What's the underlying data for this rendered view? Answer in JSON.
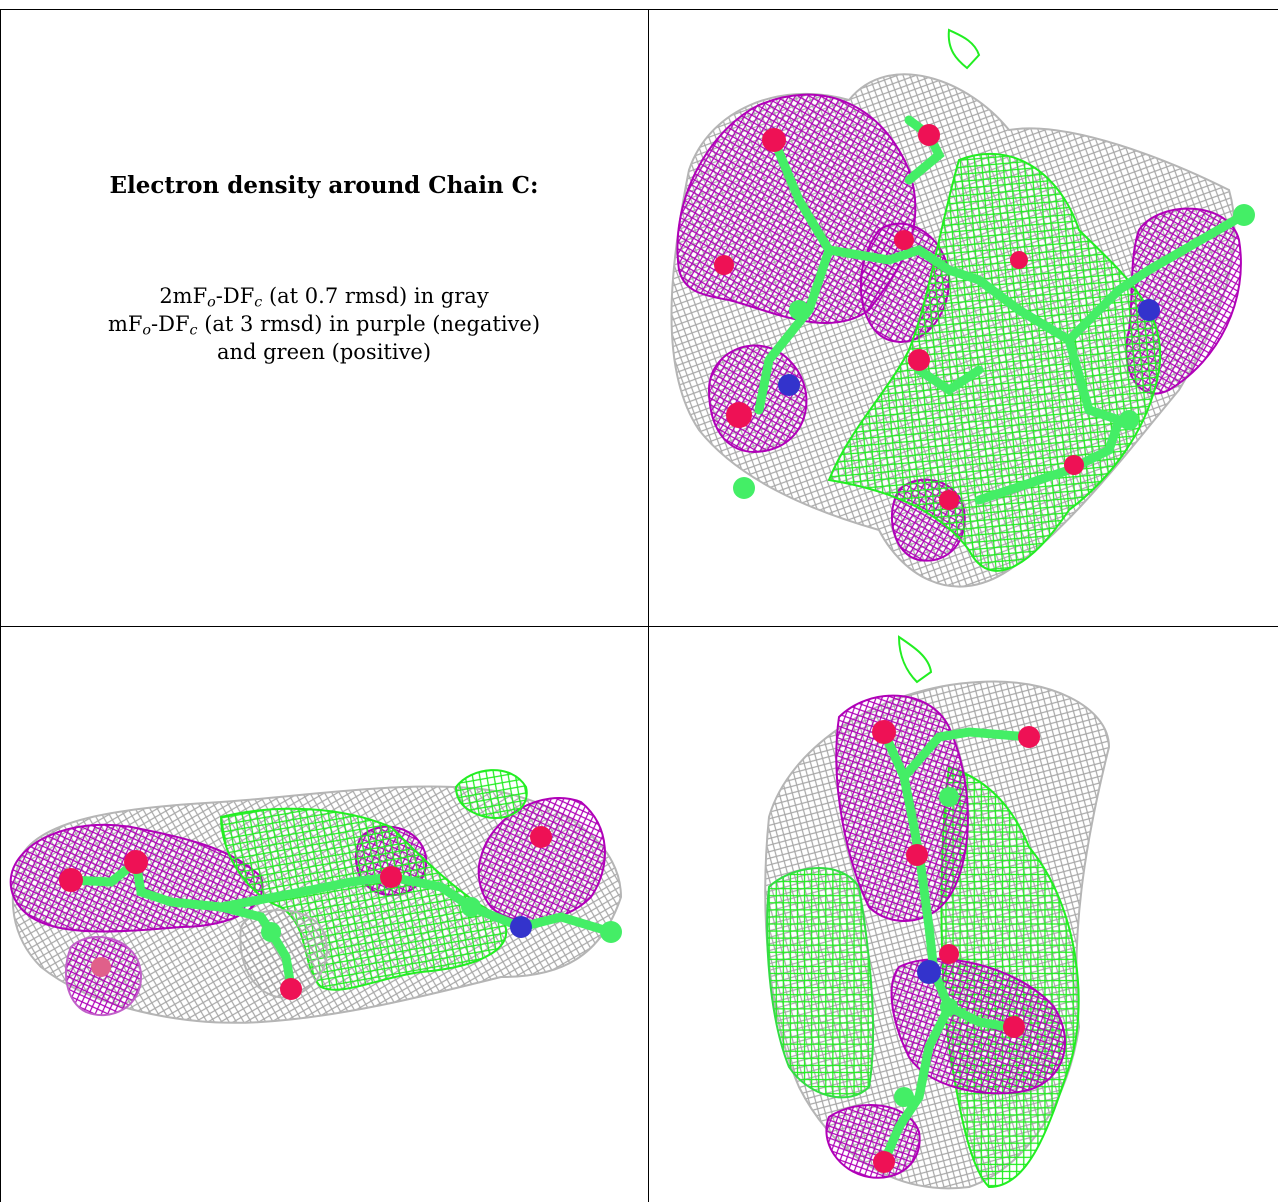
{
  "caption": {
    "title": "Electron density around Chain C:",
    "line1_pre": "2mF",
    "line1_sub1": "o",
    "line1_mid": "-DF",
    "line1_sub2": "c",
    "line1_post": " (at 0.7 rmsd) in gray",
    "line2_pre": "mF",
    "line2_sub1": "o",
    "line2_mid": "-DF",
    "line2_sub2": "c",
    "line2_post": " (at 3 rmsd) in purple (negative)",
    "line3": "and green (positive)"
  },
  "panels": [
    {
      "view": "top-right",
      "description_icon": "density-mesh-view-1"
    },
    {
      "view": "bottom-left",
      "description_icon": "density-mesh-view-2"
    },
    {
      "view": "bottom-right",
      "description_icon": "density-mesh-view-3"
    }
  ],
  "colors": {
    "gray_mesh": "#a8a8a8",
    "purple_mesh": "#b000b8",
    "green_mesh": "#22ee22",
    "atom_oxygen": "#ee1155",
    "atom_nitrogen": "#3333cc",
    "atom_carbon": "#44ee66",
    "grid": "#000000"
  }
}
